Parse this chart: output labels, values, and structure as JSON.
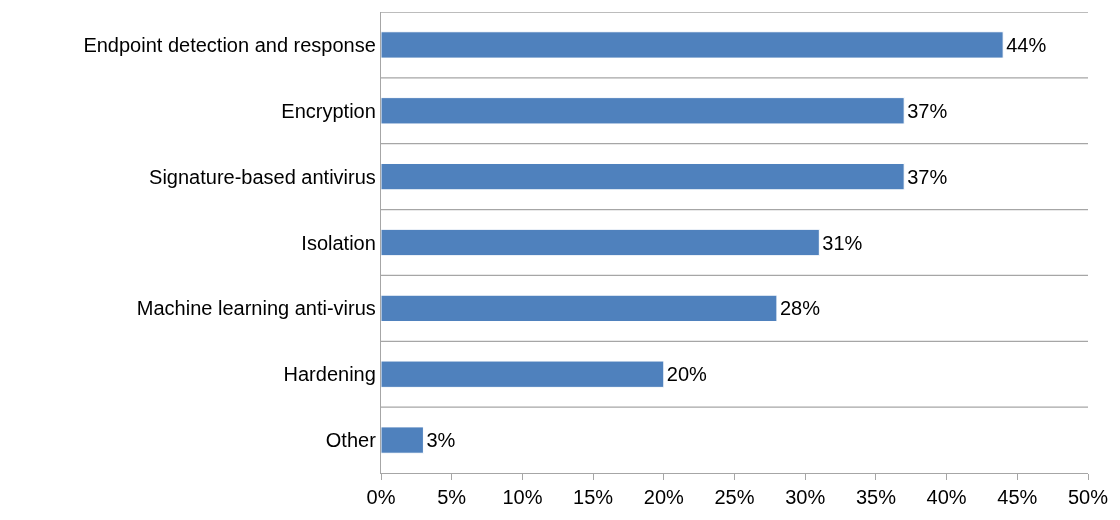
{
  "chart_data": {
    "type": "bar",
    "orientation": "horizontal",
    "categories": [
      "Endpoint detection and response",
      "Encryption",
      "Signature-based antivirus",
      "Isolation",
      "Machine learning anti-virus",
      "Hardening",
      "Other"
    ],
    "values": [
      44,
      37,
      37,
      31,
      28,
      20,
      3
    ],
    "value_labels": [
      "44%",
      "37%",
      "37%",
      "31%",
      "28%",
      "20%",
      "3%"
    ],
    "color": "#4f81bd",
    "xlim": [
      0,
      50
    ],
    "xticks": [
      {
        "value": 0,
        "label": "0%"
      },
      {
        "value": 5,
        "label": "5%"
      },
      {
        "value": 10,
        "label": "10%"
      },
      {
        "value": 15,
        "label": "15%"
      },
      {
        "value": 20,
        "label": "20%"
      },
      {
        "value": 25,
        "label": "25%"
      },
      {
        "value": 30,
        "label": "30%"
      },
      {
        "value": 35,
        "label": "35%"
      },
      {
        "value": 40,
        "label": "40%"
      },
      {
        "value": 45,
        "label": "45%"
      },
      {
        "value": 50,
        "label": "50%"
      }
    ],
    "grid": "y",
    "legend": false
  }
}
